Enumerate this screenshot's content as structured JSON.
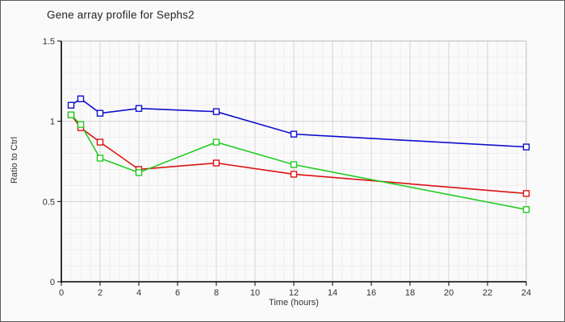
{
  "window": {
    "background": "#fafafa",
    "border_color": "#5b5b5b"
  },
  "chart_data": {
    "type": "line",
    "title": "Gene array profile for Sephs2",
    "xlabel": "Time (hours)",
    "ylabel": "Ratio to Ctrl",
    "x": [
      0.5,
      1,
      2,
      4,
      8,
      12,
      24
    ],
    "series": [
      {
        "name": "red-series",
        "color": "#dd1111",
        "values": [
          1.04,
          0.96,
          0.87,
          0.7,
          0.74,
          0.67,
          0.55
        ]
      },
      {
        "name": "green-series",
        "color": "#22cc22",
        "values": [
          1.04,
          0.98,
          0.77,
          0.68,
          0.87,
          0.73,
          0.45
        ]
      },
      {
        "name": "blue-series",
        "color": "#0f0fcc",
        "values": [
          1.1,
          1.14,
          1.05,
          1.08,
          1.06,
          0.92,
          0.84
        ]
      }
    ],
    "xlim": [
      0,
      24
    ],
    "ylim": [
      0,
      1.5
    ],
    "x_major_ticks": [
      0,
      2,
      4,
      6,
      8,
      10,
      12,
      14,
      16,
      18,
      20,
      22,
      24
    ],
    "y_major_ticks": [
      0,
      0.5,
      1,
      1.5
    ],
    "x_minor_step": 0.5,
    "y_minor_step": 0.1,
    "grid": true,
    "legend_position": "none",
    "marker": "open-square",
    "colors": {
      "axis": "#000000",
      "tick_label": "#333333",
      "grid_minor": "#ededed",
      "grid_major": "#d4d4d4",
      "plot_border": "#c6c6c6",
      "marker_fill": "#ffffff"
    }
  }
}
